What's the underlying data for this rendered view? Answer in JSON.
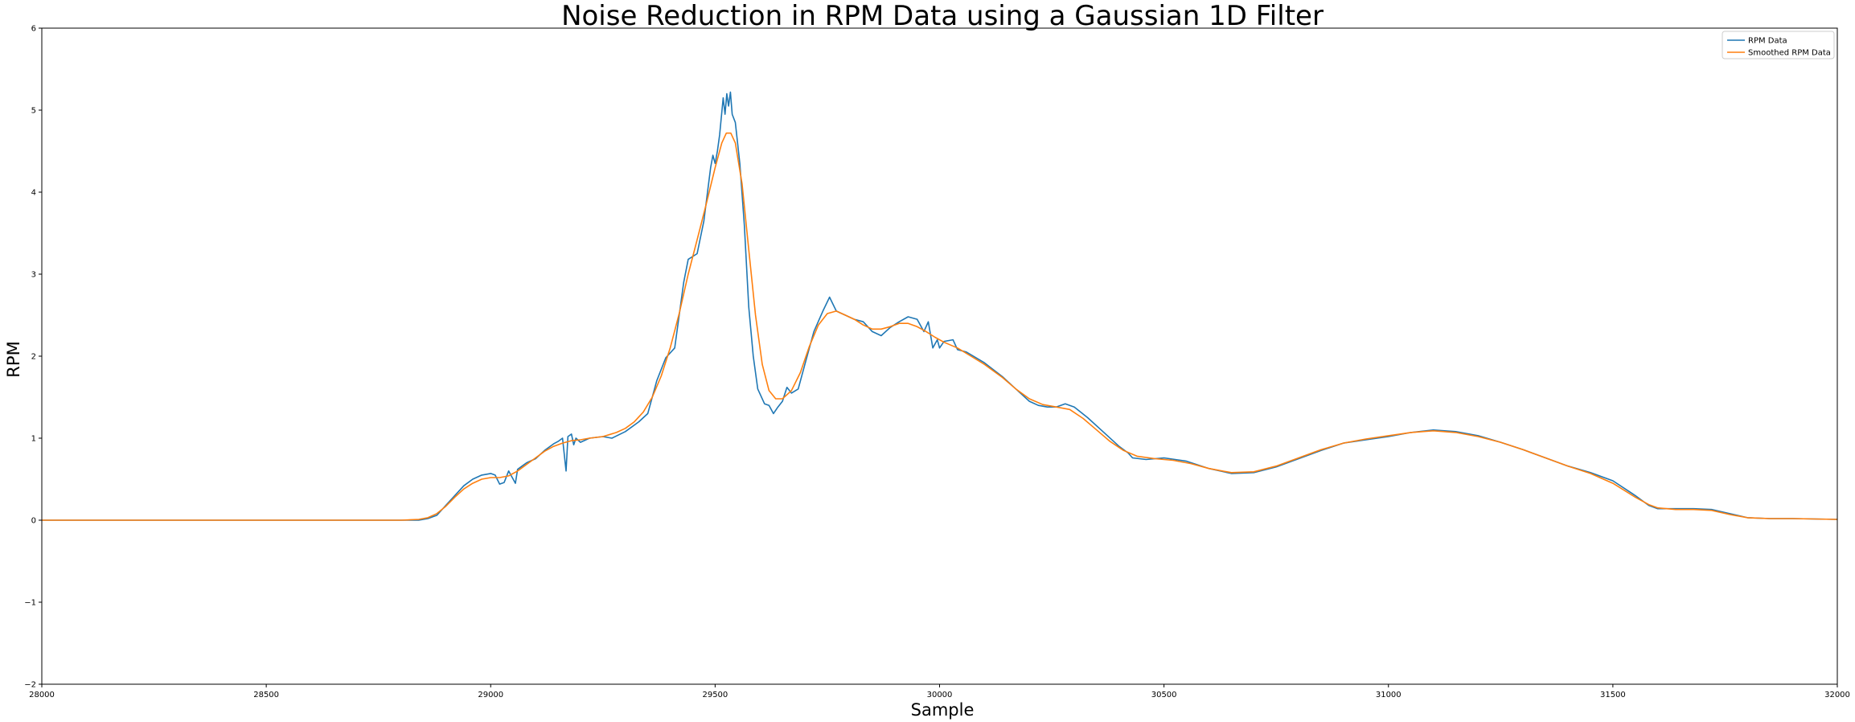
{
  "chart_data": {
    "type": "line",
    "title": "Noise Reduction in RPM Data using a Gaussian 1D Filter",
    "xlabel": "Sample",
    "ylabel": "RPM",
    "xlim": [
      28000,
      32000
    ],
    "ylim": [
      -2,
      6
    ],
    "xticks": [
      28000,
      28500,
      29000,
      29500,
      30000,
      30500,
      31000,
      31500,
      32000
    ],
    "xtick_labels": [
      "28000",
      "28500",
      "29000",
      "29500",
      "30000",
      "30500",
      "31000",
      "31500",
      "32000"
    ],
    "yticks": [
      -2,
      -1,
      0,
      1,
      2,
      3,
      4,
      5,
      6
    ],
    "ytick_labels": [
      "−2",
      "−1",
      "0",
      "1",
      "2",
      "3",
      "4",
      "5",
      "6"
    ],
    "grid": false,
    "legend_position": "top-right",
    "series": [
      {
        "name": "RPM Data",
        "color": "#1f77b4",
        "points": [
          [
            28000,
            0.0
          ],
          [
            28400,
            0.0
          ],
          [
            28800,
            0.0
          ],
          [
            28840,
            0.0
          ],
          [
            28860,
            0.02
          ],
          [
            28880,
            0.06
          ],
          [
            28900,
            0.18
          ],
          [
            28920,
            0.3
          ],
          [
            28940,
            0.42
          ],
          [
            28960,
            0.5
          ],
          [
            28980,
            0.55
          ],
          [
            29000,
            0.57
          ],
          [
            29010,
            0.55
          ],
          [
            29020,
            0.44
          ],
          [
            29030,
            0.46
          ],
          [
            29040,
            0.6
          ],
          [
            29050,
            0.5
          ],
          [
            29055,
            0.45
          ],
          [
            29060,
            0.62
          ],
          [
            29070,
            0.66
          ],
          [
            29080,
            0.7
          ],
          [
            29100,
            0.75
          ],
          [
            29120,
            0.85
          ],
          [
            29140,
            0.93
          ],
          [
            29150,
            0.96
          ],
          [
            29160,
            1.0
          ],
          [
            29168,
            0.6
          ],
          [
            29172,
            1.02
          ],
          [
            29180,
            1.05
          ],
          [
            29185,
            0.92
          ],
          [
            29190,
            1.0
          ],
          [
            29200,
            0.95
          ],
          [
            29220,
            1.0
          ],
          [
            29250,
            1.02
          ],
          [
            29270,
            1.0
          ],
          [
            29300,
            1.08
          ],
          [
            29330,
            1.2
          ],
          [
            29350,
            1.3
          ],
          [
            29360,
            1.5
          ],
          [
            29370,
            1.7
          ],
          [
            29390,
            1.98
          ],
          [
            29410,
            2.1
          ],
          [
            29420,
            2.5
          ],
          [
            29430,
            2.9
          ],
          [
            29440,
            3.18
          ],
          [
            29460,
            3.25
          ],
          [
            29475,
            3.65
          ],
          [
            29490,
            4.3
          ],
          [
            29495,
            4.45
          ],
          [
            29500,
            4.35
          ],
          [
            29505,
            4.5
          ],
          [
            29510,
            4.7
          ],
          [
            29518,
            5.15
          ],
          [
            29522,
            4.95
          ],
          [
            29526,
            5.2
          ],
          [
            29530,
            5.05
          ],
          [
            29534,
            5.22
          ],
          [
            29538,
            4.95
          ],
          [
            29545,
            4.85
          ],
          [
            29555,
            4.35
          ],
          [
            29565,
            3.6
          ],
          [
            29575,
            2.6
          ],
          [
            29585,
            2.0
          ],
          [
            29595,
            1.6
          ],
          [
            29610,
            1.42
          ],
          [
            29620,
            1.4
          ],
          [
            29630,
            1.3
          ],
          [
            29640,
            1.38
          ],
          [
            29650,
            1.45
          ],
          [
            29660,
            1.62
          ],
          [
            29670,
            1.55
          ],
          [
            29685,
            1.6
          ],
          [
            29700,
            1.9
          ],
          [
            29720,
            2.3
          ],
          [
            29740,
            2.55
          ],
          [
            29755,
            2.72
          ],
          [
            29770,
            2.55
          ],
          [
            29790,
            2.5
          ],
          [
            29810,
            2.45
          ],
          [
            29830,
            2.42
          ],
          [
            29850,
            2.3
          ],
          [
            29870,
            2.25
          ],
          [
            29890,
            2.35
          ],
          [
            29910,
            2.42
          ],
          [
            29930,
            2.48
          ],
          [
            29950,
            2.45
          ],
          [
            29965,
            2.3
          ],
          [
            29975,
            2.42
          ],
          [
            29985,
            2.1
          ],
          [
            29995,
            2.2
          ],
          [
            30000,
            2.1
          ],
          [
            30010,
            2.18
          ],
          [
            30030,
            2.2
          ],
          [
            30040,
            2.08
          ],
          [
            30060,
            2.05
          ],
          [
            30100,
            1.92
          ],
          [
            30140,
            1.75
          ],
          [
            30170,
            1.6
          ],
          [
            30200,
            1.45
          ],
          [
            30220,
            1.4
          ],
          [
            30240,
            1.38
          ],
          [
            30260,
            1.38
          ],
          [
            30280,
            1.42
          ],
          [
            30300,
            1.38
          ],
          [
            30330,
            1.25
          ],
          [
            30360,
            1.1
          ],
          [
            30400,
            0.9
          ],
          [
            30420,
            0.82
          ],
          [
            30430,
            0.76
          ],
          [
            30460,
            0.74
          ],
          [
            30500,
            0.76
          ],
          [
            30550,
            0.72
          ],
          [
            30600,
            0.63
          ],
          [
            30650,
            0.57
          ],
          [
            30700,
            0.58
          ],
          [
            30750,
            0.65
          ],
          [
            30800,
            0.75
          ],
          [
            30850,
            0.85
          ],
          [
            30900,
            0.94
          ],
          [
            30950,
            0.98
          ],
          [
            31000,
            1.02
          ],
          [
            31050,
            1.07
          ],
          [
            31100,
            1.1
          ],
          [
            31150,
            1.08
          ],
          [
            31200,
            1.03
          ],
          [
            31250,
            0.95
          ],
          [
            31300,
            0.86
          ],
          [
            31350,
            0.76
          ],
          [
            31400,
            0.66
          ],
          [
            31450,
            0.58
          ],
          [
            31500,
            0.48
          ],
          [
            31550,
            0.3
          ],
          [
            31580,
            0.18
          ],
          [
            31600,
            0.14
          ],
          [
            31640,
            0.14
          ],
          [
            31680,
            0.14
          ],
          [
            31720,
            0.13
          ],
          [
            31760,
            0.08
          ],
          [
            31800,
            0.03
          ],
          [
            31850,
            0.02
          ],
          [
            31900,
            0.02
          ],
          [
            32000,
            0.01
          ]
        ]
      },
      {
        "name": "Smoothed RPM Data",
        "color": "#ff7f0e",
        "points": [
          [
            28000,
            0.0
          ],
          [
            28400,
            0.0
          ],
          [
            28800,
            0.0
          ],
          [
            28840,
            0.01
          ],
          [
            28860,
            0.03
          ],
          [
            28880,
            0.08
          ],
          [
            28900,
            0.17
          ],
          [
            28920,
            0.28
          ],
          [
            28940,
            0.38
          ],
          [
            28960,
            0.45
          ],
          [
            28980,
            0.5
          ],
          [
            29000,
            0.52
          ],
          [
            29020,
            0.52
          ],
          [
            29040,
            0.54
          ],
          [
            29060,
            0.6
          ],
          [
            29080,
            0.68
          ],
          [
            29100,
            0.76
          ],
          [
            29120,
            0.84
          ],
          [
            29140,
            0.9
          ],
          [
            29160,
            0.94
          ],
          [
            29180,
            0.97
          ],
          [
            29200,
            0.98
          ],
          [
            29220,
            1.0
          ],
          [
            29250,
            1.02
          ],
          [
            29280,
            1.07
          ],
          [
            29300,
            1.12
          ],
          [
            29320,
            1.2
          ],
          [
            29340,
            1.32
          ],
          [
            29360,
            1.5
          ],
          [
            29380,
            1.76
          ],
          [
            29400,
            2.1
          ],
          [
            29420,
            2.52
          ],
          [
            29440,
            3.0
          ],
          [
            29460,
            3.42
          ],
          [
            29480,
            3.85
          ],
          [
            29500,
            4.3
          ],
          [
            29515,
            4.6
          ],
          [
            29525,
            4.72
          ],
          [
            29535,
            4.72
          ],
          [
            29545,
            4.6
          ],
          [
            29560,
            4.1
          ],
          [
            29575,
            3.3
          ],
          [
            29590,
            2.5
          ],
          [
            29605,
            1.9
          ],
          [
            29620,
            1.58
          ],
          [
            29635,
            1.48
          ],
          [
            29650,
            1.48
          ],
          [
            29670,
            1.58
          ],
          [
            29690,
            1.8
          ],
          [
            29710,
            2.12
          ],
          [
            29730,
            2.38
          ],
          [
            29750,
            2.52
          ],
          [
            29770,
            2.55
          ],
          [
            29790,
            2.5
          ],
          [
            29810,
            2.45
          ],
          [
            29830,
            2.38
          ],
          [
            29850,
            2.33
          ],
          [
            29870,
            2.33
          ],
          [
            29890,
            2.36
          ],
          [
            29910,
            2.4
          ],
          [
            29930,
            2.4
          ],
          [
            29950,
            2.36
          ],
          [
            29970,
            2.3
          ],
          [
            29990,
            2.23
          ],
          [
            30010,
            2.17
          ],
          [
            30040,
            2.1
          ],
          [
            30070,
            2.0
          ],
          [
            30100,
            1.9
          ],
          [
            30140,
            1.74
          ],
          [
            30170,
            1.6
          ],
          [
            30200,
            1.48
          ],
          [
            30230,
            1.41
          ],
          [
            30260,
            1.38
          ],
          [
            30290,
            1.35
          ],
          [
            30320,
            1.24
          ],
          [
            30350,
            1.1
          ],
          [
            30380,
            0.96
          ],
          [
            30410,
            0.85
          ],
          [
            30440,
            0.78
          ],
          [
            30480,
            0.75
          ],
          [
            30520,
            0.73
          ],
          [
            30560,
            0.69
          ],
          [
            30600,
            0.63
          ],
          [
            30650,
            0.58
          ],
          [
            30700,
            0.59
          ],
          [
            30750,
            0.66
          ],
          [
            30800,
            0.76
          ],
          [
            30850,
            0.86
          ],
          [
            30900,
            0.94
          ],
          [
            30950,
            0.99
          ],
          [
            31000,
            1.03
          ],
          [
            31050,
            1.07
          ],
          [
            31100,
            1.09
          ],
          [
            31150,
            1.07
          ],
          [
            31200,
            1.02
          ],
          [
            31250,
            0.95
          ],
          [
            31300,
            0.86
          ],
          [
            31350,
            0.76
          ],
          [
            31400,
            0.66
          ],
          [
            31450,
            0.57
          ],
          [
            31500,
            0.45
          ],
          [
            31550,
            0.28
          ],
          [
            31580,
            0.19
          ],
          [
            31600,
            0.15
          ],
          [
            31640,
            0.13
          ],
          [
            31680,
            0.13
          ],
          [
            31720,
            0.12
          ],
          [
            31760,
            0.07
          ],
          [
            31800,
            0.03
          ],
          [
            31850,
            0.02
          ],
          [
            31900,
            0.02
          ],
          [
            32000,
            0.01
          ]
        ]
      }
    ]
  }
}
